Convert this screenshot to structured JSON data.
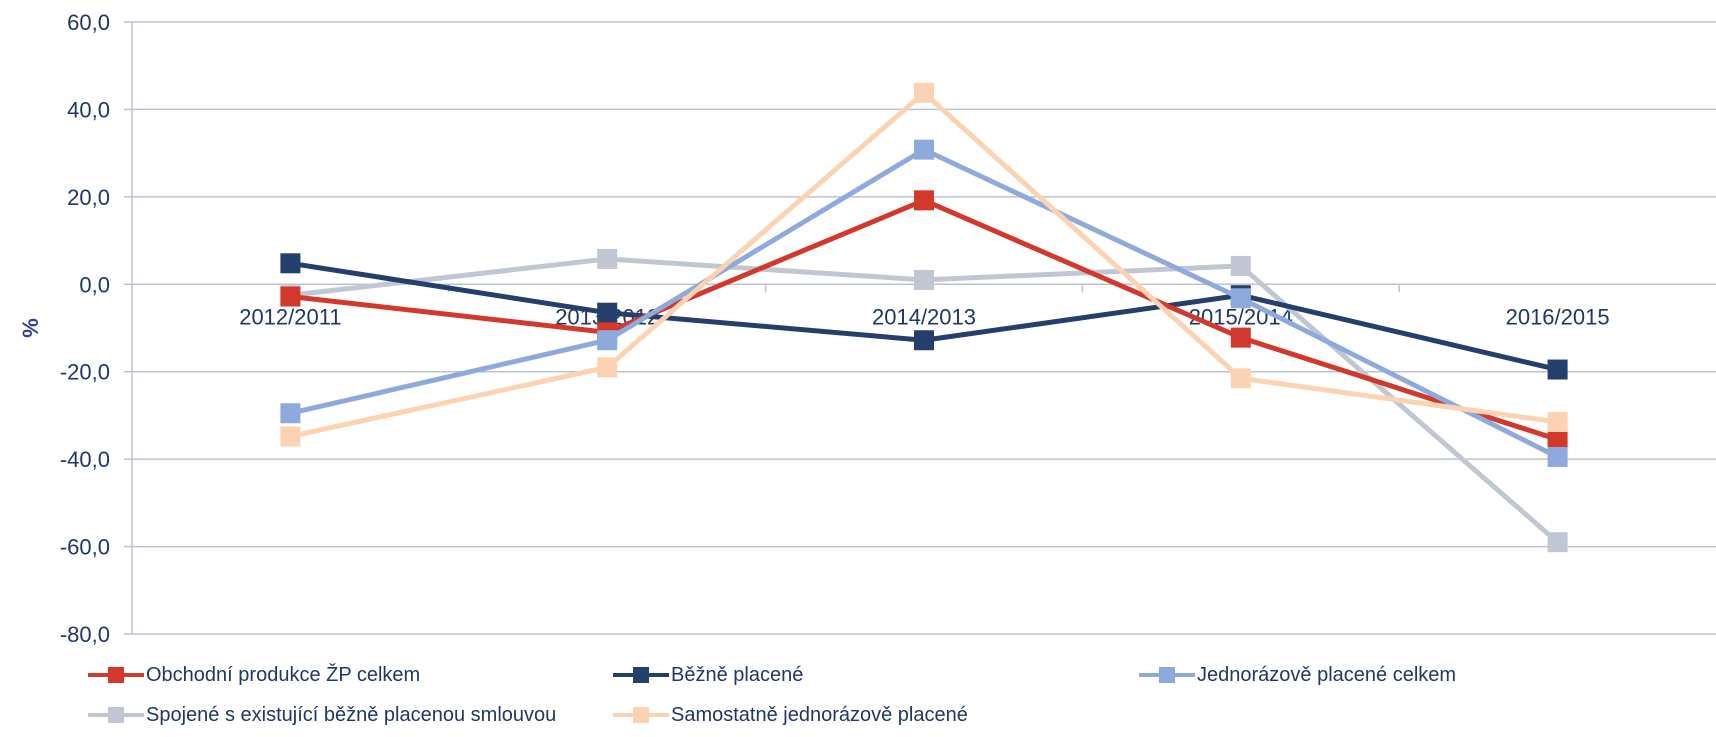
{
  "chart_data": {
    "type": "line",
    "categories": [
      "2012/2011",
      "2013/2012",
      "2014/2013",
      "2015/2014",
      "2016/2015"
    ],
    "ylabel": "%",
    "ylim": [
      -80,
      60
    ],
    "yticks": [
      "60,0",
      "40,0",
      "20,0",
      "0,0",
      "-20,0",
      "-40,0",
      "-60,0",
      "-80,0"
    ],
    "ytick_values": [
      60,
      40,
      20,
      0,
      -20,
      -40,
      -60,
      -80
    ],
    "grid": true,
    "legend_position": "bottom",
    "series": [
      {
        "name": "Spojené s existující běžně placenou smlouvou",
        "color": "#c0c6d2",
        "values": [
          -2.5,
          5.8,
          1.0,
          4.2,
          -59.0
        ]
      },
      {
        "name": "Běžně placené",
        "color": "#243f6b",
        "values": [
          4.8,
          -6.5,
          -12.8,
          -2.5,
          -19.5
        ]
      },
      {
        "name": "Obchodní produkce ŽP celkem",
        "color": "#d2382c",
        "values": [
          -2.8,
          -11.0,
          19.2,
          -12.2,
          -35.5
        ]
      },
      {
        "name": "Jednorázově placené celkem",
        "color": "#8eaadc",
        "values": [
          -29.5,
          -12.8,
          30.8,
          -3.2,
          -39.5
        ]
      },
      {
        "name": "Samostatně jednorázově placené",
        "color": "#fbd3b2",
        "values": [
          -34.8,
          -19.0,
          43.8,
          -21.5,
          -31.5
        ]
      }
    ],
    "legend_order": [
      2,
      1,
      3,
      0,
      4
    ]
  }
}
